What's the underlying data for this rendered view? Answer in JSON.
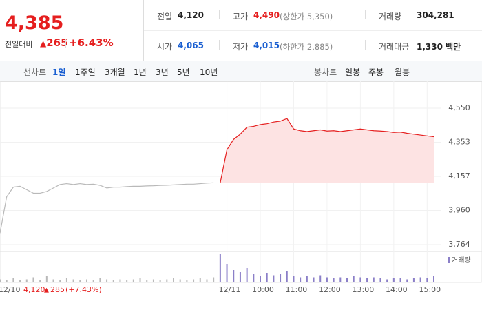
{
  "header": {
    "price": "4,385",
    "change_label": "전일대비",
    "change": "265",
    "change_pct": "+6.43%",
    "stats": [
      {
        "label": "전일",
        "value": "4,120"
      },
      {
        "label": "고가",
        "value": "4,490",
        "note": "(상한가 5,350)"
      },
      {
        "label": "거래량",
        "value": "304,281"
      },
      {
        "label": "시가",
        "value": "4,065"
      },
      {
        "label": "저가",
        "value": "4,015",
        "note": "(하한가 2,885)"
      },
      {
        "label": "거래대금",
        "value": "1,330 백만"
      }
    ]
  },
  "tabs": {
    "line_label": "선차트",
    "periods": [
      "1일",
      "1주일",
      "3개월",
      "1년",
      "3년",
      "5년",
      "10년"
    ],
    "active": 0,
    "candle_label": "봉차트",
    "candles": [
      "일봉",
      "주봉",
      "월봉"
    ]
  },
  "footer": {
    "price": "4,120",
    "change": "285",
    "change_pct": "(+7.43%)"
  },
  "chart_data": {
    "type": "line",
    "categories": [
      null,
      "12/10",
      null,
      null,
      null,
      null,
      null,
      null,
      null,
      null,
      null,
      null,
      null,
      null,
      null,
      null,
      null,
      null,
      null,
      null,
      null,
      null,
      null,
      null,
      null,
      null,
      null,
      null,
      null,
      null,
      null,
      null,
      null,
      null,
      "12/11",
      null,
      null,
      null,
      null,
      "10:00",
      null,
      null,
      null,
      null,
      "11:00",
      null,
      null,
      null,
      null,
      "12:00",
      null,
      null,
      null,
      null,
      "13:00",
      null,
      null,
      null,
      null,
      "14:00",
      null,
      null,
      null,
      null,
      "15:00",
      null
    ],
    "series": [
      {
        "color": "#b9b9b9",
        "values": [
          3830,
          4040,
          4095,
          4100,
          4080,
          4060,
          4060,
          4070,
          4090,
          4110,
          4115,
          4110,
          4115,
          4110,
          4112,
          4105,
          4090,
          4095,
          4095,
          4098,
          4100,
          4100,
          4102,
          4103,
          4105,
          4106,
          4108,
          4110,
          4112,
          4112,
          4115,
          4118,
          4120,
          null,
          null,
          null,
          null,
          null,
          null,
          null,
          null,
          null,
          null,
          null,
          null,
          null,
          null,
          null,
          null,
          null,
          null,
          null,
          null,
          null,
          null,
          null,
          null,
          null,
          null,
          null,
          null,
          null,
          null,
          null,
          null,
          null
        ]
      },
      {
        "color": "#e51f1f",
        "values": [
          null,
          null,
          null,
          null,
          null,
          null,
          null,
          null,
          null,
          null,
          null,
          null,
          null,
          null,
          null,
          null,
          null,
          null,
          null,
          null,
          null,
          null,
          null,
          null,
          null,
          null,
          null,
          null,
          null,
          null,
          null,
          null,
          null,
          4120,
          4310,
          4370,
          4400,
          4440,
          4445,
          4455,
          4460,
          4470,
          4475,
          4490,
          4430,
          4420,
          4415,
          4420,
          4425,
          4418,
          4420,
          4415,
          4420,
          4425,
          4430,
          4425,
          4420,
          4418,
          4415,
          4410,
          4412,
          4405,
          4400,
          4395,
          4390,
          4385
        ]
      },
      {
        "name": "거래량",
        "color": "#8b7fc8",
        "volume": true,
        "values": [
          3,
          2,
          4,
          2,
          3,
          5,
          2,
          6,
          3,
          2,
          4,
          3,
          2,
          3,
          2,
          4,
          3,
          2,
          3,
          2,
          3,
          4,
          2,
          3,
          2,
          3,
          4,
          3,
          2,
          3,
          4,
          3,
          5,
          28,
          18,
          12,
          10,
          14,
          8,
          6,
          9,
          7,
          8,
          11,
          6,
          5,
          6,
          5,
          7,
          5,
          4,
          5,
          4,
          6,
          5,
          4,
          5,
          4,
          3,
          4,
          4,
          3,
          4,
          5,
          4,
          6
        ]
      }
    ],
    "ylim": [
      3764,
      4550
    ],
    "yticks": [
      {
        "value": 3764,
        "label": "3,764"
      },
      {
        "value": 3960,
        "label": "3,960"
      },
      {
        "value": 4157,
        "label": "4,157"
      },
      {
        "value": 4353,
        "label": "4,353"
      },
      {
        "value": 4550,
        "label": "4,550"
      }
    ],
    "grid": true
  }
}
